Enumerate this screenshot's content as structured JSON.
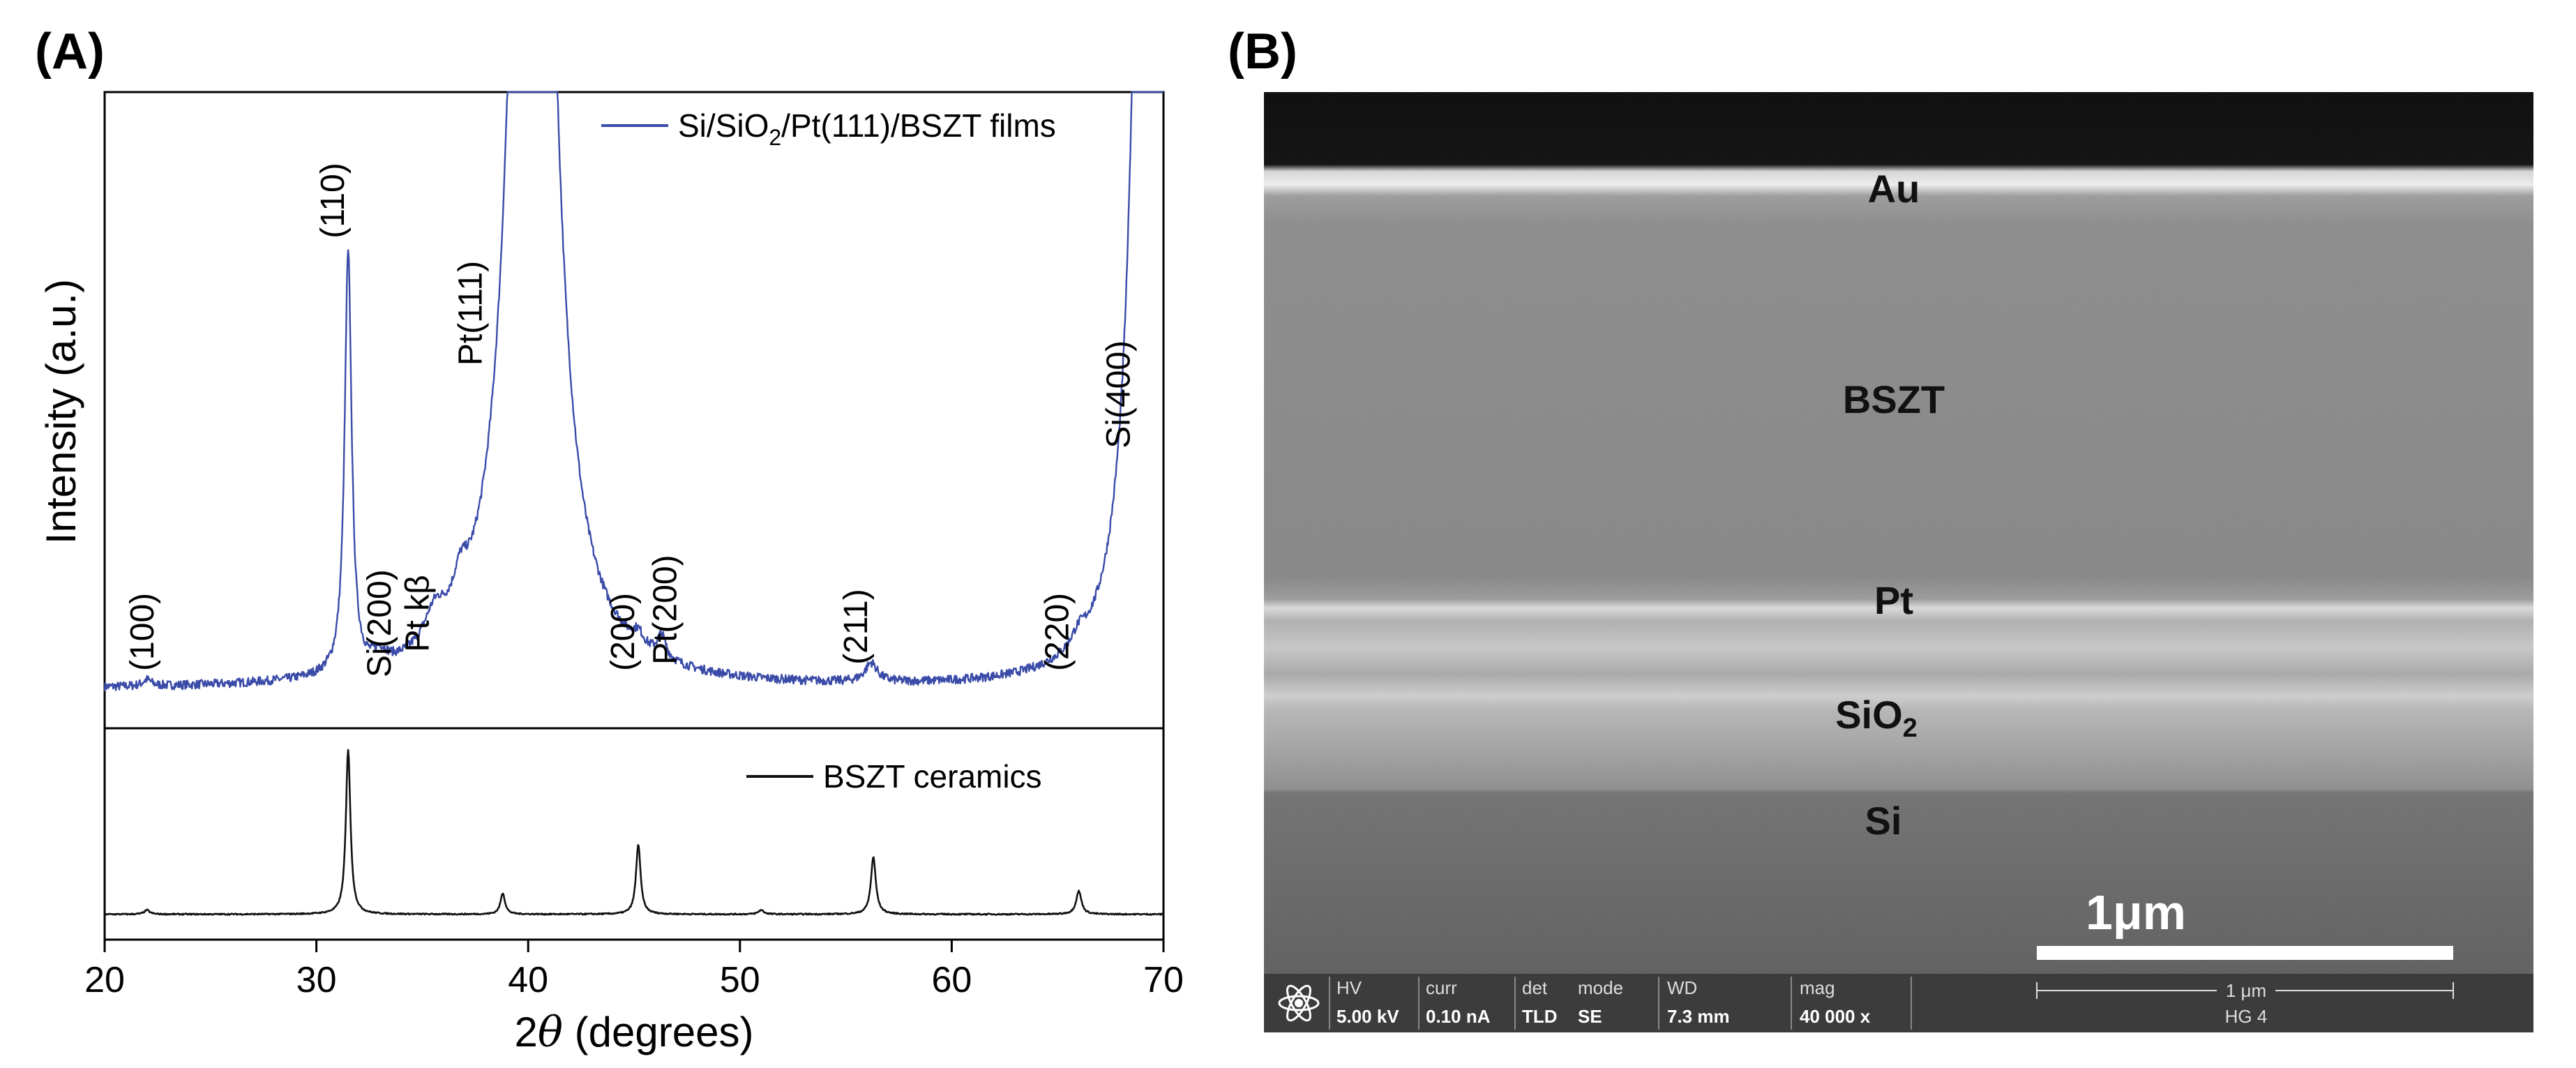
{
  "chart_data": [
    {
      "panel": "(A)",
      "type": "line",
      "xlabel_prefix": "2",
      "xlabel_symbol": "θ",
      "xlabel_suffix": " (degrees)",
      "ylabel": "Intensity (a.u.)",
      "xlim": [
        20,
        70
      ],
      "xticks": [
        20,
        30,
        40,
        50,
        60,
        70
      ],
      "grid": false,
      "subplots": [
        {
          "name": "films",
          "legend": {
            "pre": "Si/SiO",
            "sub": "2",
            "post": "/Pt(111)/BSZT films",
            "placement": "top-right"
          },
          "color": "#3a4ba8",
          "baseline": 0.06,
          "peaks": [
            {
              "x": 22.0,
              "h": 0.01,
              "w": 0.25
            },
            {
              "x": 31.5,
              "h": 0.66,
              "w": 0.2
            },
            {
              "x": 33.0,
              "h": 0.02,
              "w": 0.4
            },
            {
              "x": 35.6,
              "h": 0.05,
              "w": 0.6
            },
            {
              "x": 36.8,
              "h": 0.05,
              "w": 0.4
            },
            {
              "x": 40.2,
              "h": 3.0,
              "w": 0.8
            },
            {
              "x": 45.2,
              "h": 0.02,
              "w": 0.3
            },
            {
              "x": 46.3,
              "h": 0.035,
              "w": 0.25
            },
            {
              "x": 56.2,
              "h": 0.03,
              "w": 0.35
            },
            {
              "x": 66.0,
              "h": 0.02,
              "w": 0.4
            },
            {
              "x": 69.4,
              "h": 4.0,
              "w": 0.5
            }
          ],
          "peak_labels": [
            {
              "text": "(100)",
              "x": 22.3,
              "y": 0.09
            },
            {
              "text": "(110)",
              "x": 31.3,
              "y": 0.77
            },
            {
              "text": "Si(200)",
              "x": 33.5,
              "y": 0.08
            },
            {
              "text": "Pt kβ",
              "x": 35.3,
              "y": 0.12
            },
            {
              "text": "Pt(111)",
              "x": 37.8,
              "y": 0.57
            },
            {
              "text": "(200)",
              "x": 45.0,
              "y": 0.09
            },
            {
              "text": "Pt(200)",
              "x": 47.0,
              "y": 0.1
            },
            {
              "text": "(211)",
              "x": 56.0,
              "y": 0.1
            },
            {
              "text": "(220)",
              "x": 65.5,
              "y": 0.09
            },
            {
              "text": "Si(400)",
              "x": 68.4,
              "y": 0.44
            }
          ]
        },
        {
          "name": "ceramics",
          "legend": {
            "pre": "BSZT ceramics",
            "sub": "",
            "post": "",
            "placement": "top-right"
          },
          "color": "#111111",
          "baseline": 0.12,
          "peaks": [
            {
              "x": 22.0,
              "h": 0.02,
              "w": 0.15
            },
            {
              "x": 31.5,
              "h": 0.78,
              "w": 0.13
            },
            {
              "x": 38.8,
              "h": 0.1,
              "w": 0.13
            },
            {
              "x": 45.2,
              "h": 0.33,
              "w": 0.13
            },
            {
              "x": 51.0,
              "h": 0.02,
              "w": 0.15
            },
            {
              "x": 56.3,
              "h": 0.27,
              "w": 0.14
            },
            {
              "x": 66.0,
              "h": 0.11,
              "w": 0.15
            }
          ]
        }
      ]
    },
    {
      "panel": "(B)",
      "type": "image",
      "layers": [
        "Au",
        "BSZT",
        "Pt",
        "SiO",
        "Si"
      ],
      "layer_sub": "2",
      "scale_bar": "1μm",
      "info_bar": {
        "hv_label": "HV",
        "hv_value": "5.00 kV",
        "curr_label": "curr",
        "curr_value": "0.10 nA",
        "det_label": "det",
        "det_value": "TLD",
        "mode_label": "mode",
        "mode_value": "SE",
        "wd_label": "WD",
        "wd_value": "7.3 mm",
        "mag_label": "mag",
        "mag_value": "40 000 x",
        "scale_small": "1 μm",
        "id": "HG 4"
      }
    }
  ]
}
